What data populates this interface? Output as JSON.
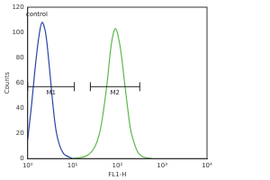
{
  "chart_data": {
    "type": "line",
    "x_label": "FL1-H",
    "y_label": "Counts",
    "log": "x",
    "grid": false,
    "xlim": [
      1,
      10000
    ],
    "xticks": [
      {
        "value": 1,
        "label": "10⁰"
      },
      {
        "value": 10,
        "label": "10¹"
      },
      {
        "value": 100,
        "label": "10²"
      },
      {
        "value": 1000,
        "label": "10³"
      },
      {
        "value": 10000,
        "label": "10⁴"
      }
    ],
    "ylim": [
      0,
      120
    ],
    "yticks": [
      0,
      20,
      40,
      60,
      80,
      100,
      120
    ],
    "series": [
      {
        "color": "#2a45a8",
        "x": [
          1,
          1.2,
          1.5,
          1.8,
          2.1,
          2.5,
          3,
          3.6,
          4.3,
          5.2,
          6.3,
          7.5,
          10
        ],
        "values": [
          15,
          40,
          75,
          98,
          108,
          100,
          75,
          45,
          22,
          10,
          4,
          2,
          0
        ]
      },
      {
        "color": "#5cb84a",
        "x": [
          10,
          20,
          30,
          40,
          50,
          60,
          70,
          80,
          90,
          100,
          120,
          140,
          170,
          200,
          250,
          300,
          400,
          600
        ],
        "values": [
          0,
          2,
          8,
          20,
          40,
          62,
          85,
          98,
          103,
          100,
          85,
          65,
          40,
          22,
          10,
          4,
          1,
          0
        ]
      }
    ],
    "gates": [
      {
        "label": "M1",
        "x": [
          1,
          11
        ],
        "y": 57
      },
      {
        "label": "M2",
        "x": [
          25,
          316
        ],
        "y": 57
      }
    ],
    "annotations": [
      {
        "text": "control",
        "x": 1.6,
        "y": 112
      }
    ]
  }
}
